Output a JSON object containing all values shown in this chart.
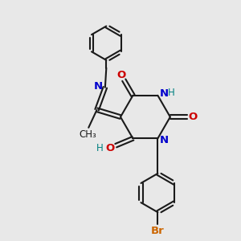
{
  "bg_color": "#e8e8e8",
  "bond_color": "#1a1a1a",
  "nitrogen_color": "#0000cc",
  "oxygen_color": "#cc0000",
  "bromine_color": "#cc6600",
  "hydrogen_color": "#008080",
  "line_width": 1.5,
  "figsize": [
    3.0,
    3.0
  ],
  "dpi": 100,
  "xlim": [
    0,
    10
  ],
  "ylim": [
    0,
    10
  ]
}
